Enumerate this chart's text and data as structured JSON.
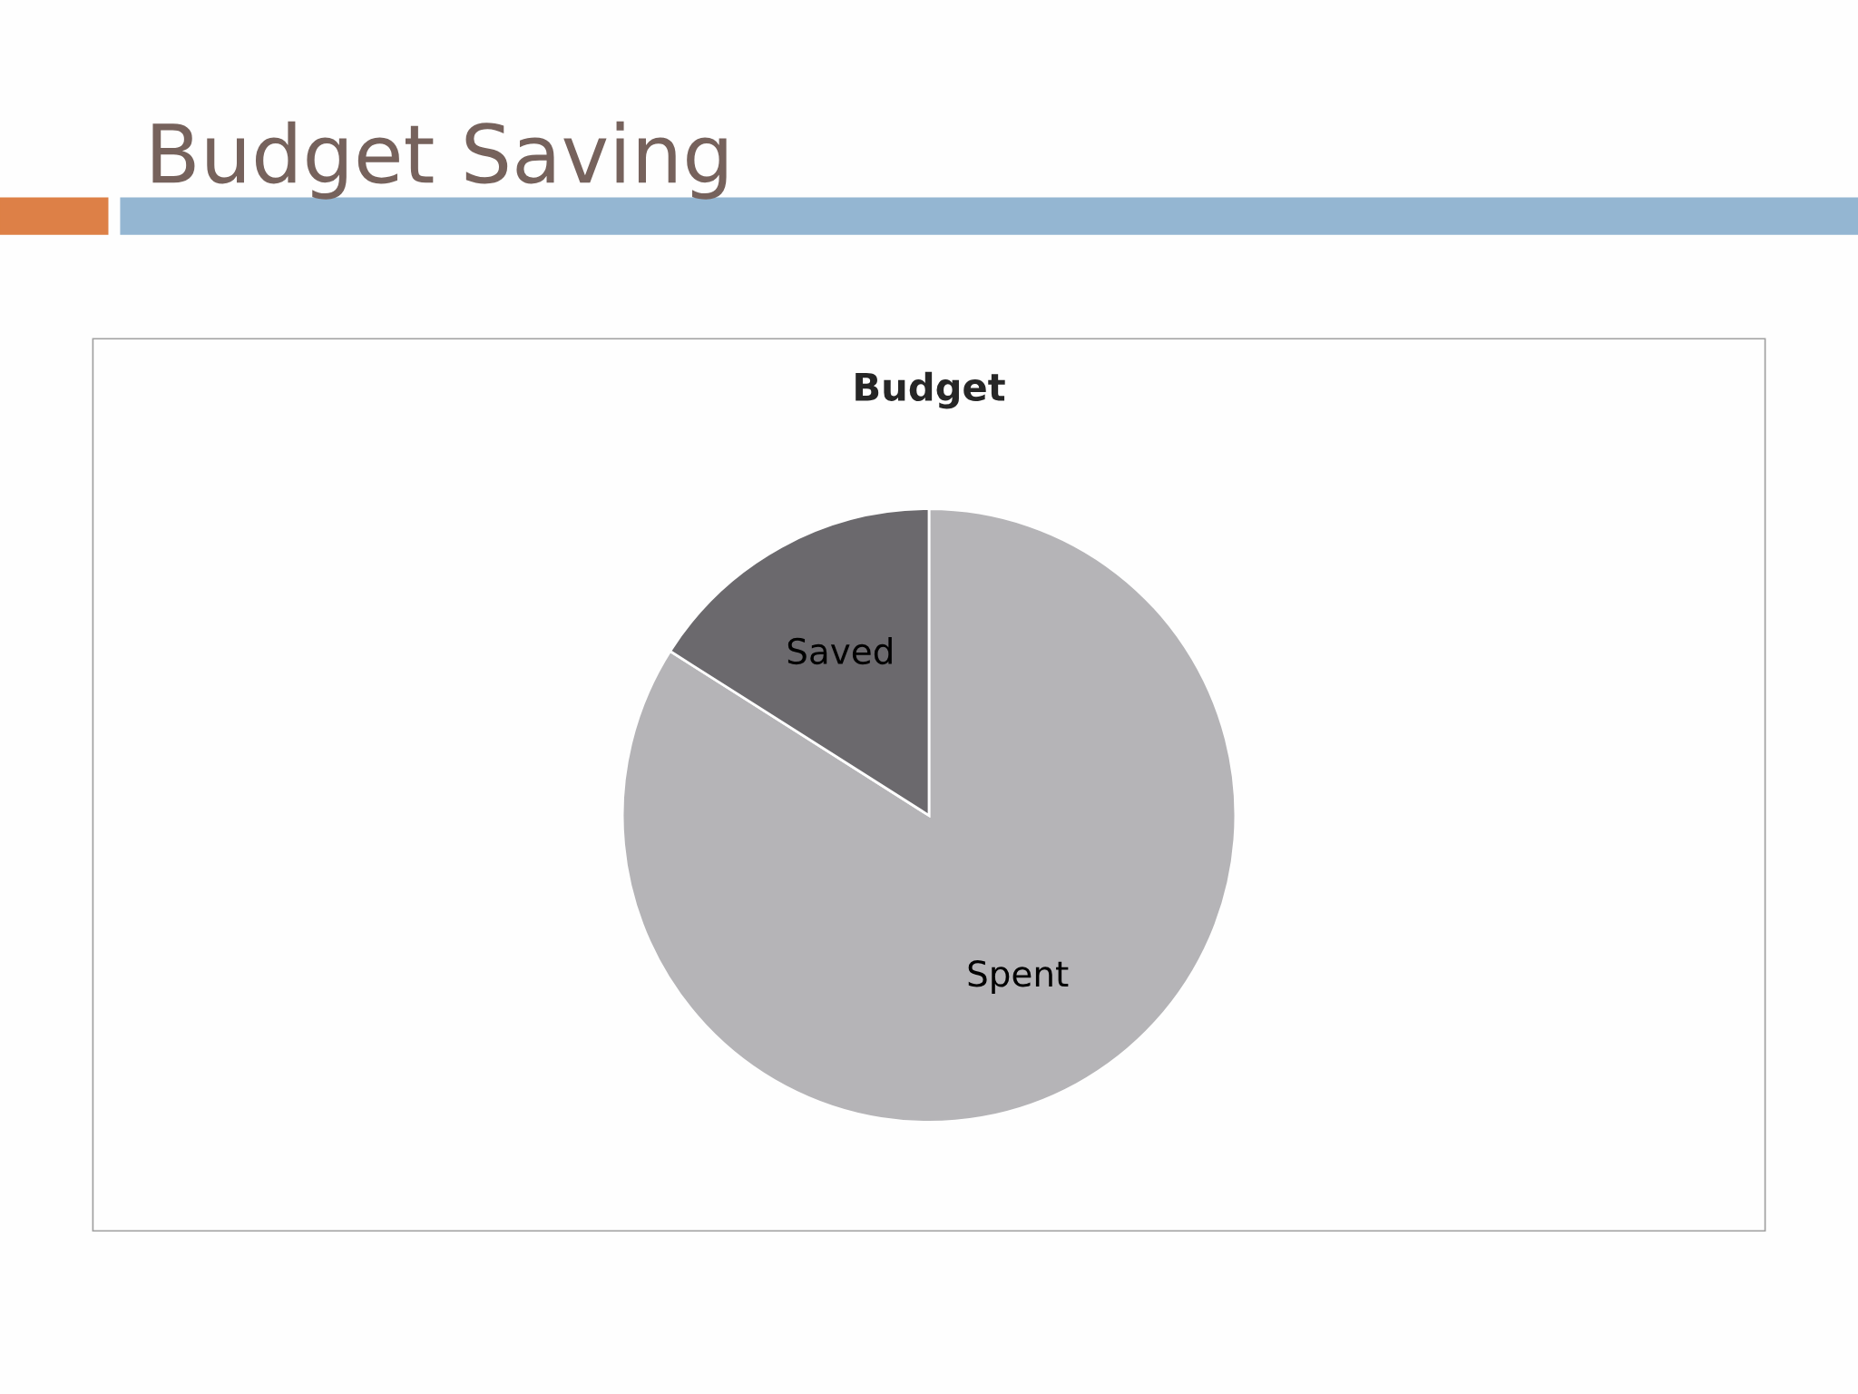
{
  "chart_data": {
    "type": "pie",
    "title": "Budget Saving",
    "subtitle": "Budget",
    "categories": [
      "Spent",
      "Saved"
    ],
    "values": [
      84,
      16
    ],
    "colors": [
      "#b5b4b7",
      "#6b696d"
    ]
  }
}
